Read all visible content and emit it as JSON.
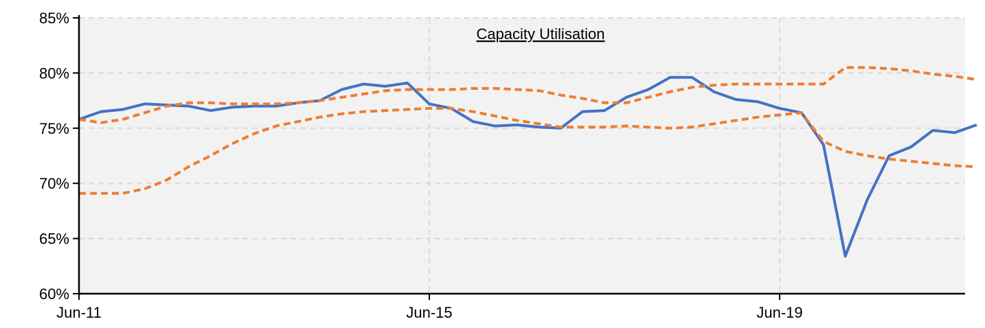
{
  "chart_data": {
    "type": "line",
    "title": "Capacity Utilisation",
    "xlabel": "",
    "ylabel": "",
    "x_tick_labels": [
      "Jun-11",
      "Jun-15",
      "Jun-19"
    ],
    "y_tick_labels": [
      "60%",
      "65%",
      "70%",
      "75%",
      "80%",
      "85%"
    ],
    "ylim": [
      60,
      85
    ],
    "grid": true,
    "legend": "none",
    "colors": {
      "background": "#f2f2f2",
      "actual": "#4472c4",
      "band": "#ed7d31",
      "grid": "#d9d9d9"
    },
    "series": [
      {
        "style": "solid",
        "color": "#4472c4",
        "points": [
          [
            "Jun-11",
            75.8
          ],
          [
            "Sep-11",
            76.5
          ],
          [
            "Dec-11",
            76.7
          ],
          [
            "Mar-12",
            77.2
          ],
          [
            "Jun-12",
            77.1
          ],
          [
            "Sep-12",
            77.0
          ],
          [
            "Dec-12",
            76.6
          ],
          [
            "Mar-13",
            76.9
          ],
          [
            "Jun-13",
            77.0
          ],
          [
            "Sep-13",
            77.0
          ],
          [
            "Dec-13",
            77.3
          ],
          [
            "Mar-14",
            77.5
          ],
          [
            "Jun-14",
            78.5
          ],
          [
            "Sep-14",
            79.0
          ],
          [
            "Dec-14",
            78.8
          ],
          [
            "Mar-15",
            79.1
          ],
          [
            "Jun-15",
            77.2
          ],
          [
            "Sep-15",
            76.8
          ],
          [
            "Dec-15",
            75.6
          ],
          [
            "Mar-16",
            75.2
          ],
          [
            "Jun-16",
            75.3
          ],
          [
            "Sep-16",
            75.1
          ],
          [
            "Dec-16",
            75.0
          ],
          [
            "Mar-17",
            76.5
          ],
          [
            "Jun-17",
            76.6
          ],
          [
            "Sep-17",
            77.8
          ],
          [
            "Dec-17",
            78.5
          ],
          [
            "Mar-18",
            79.6
          ],
          [
            "Jun-18",
            79.6
          ],
          [
            "Sep-18",
            78.3
          ],
          [
            "Dec-18",
            77.6
          ],
          [
            "Mar-19",
            77.4
          ],
          [
            "Jun-19",
            76.8
          ],
          [
            "Sep-19",
            76.4
          ],
          [
            "Dec-19",
            73.5
          ],
          [
            "Mar-20",
            63.4
          ],
          [
            "Jun-20",
            68.5
          ],
          [
            "Sep-20",
            72.5
          ],
          [
            "Dec-20",
            73.3
          ],
          [
            "Mar-21",
            74.8
          ],
          [
            "Jun-21",
            74.6
          ],
          [
            "Sep-21",
            75.3
          ]
        ]
      },
      {
        "style": "dashed",
        "color": "#ed7d31",
        "points": [
          [
            "Jun-11",
            75.8
          ],
          [
            "Sep-11",
            75.5
          ],
          [
            "Dec-11",
            75.8
          ],
          [
            "Mar-12",
            76.4
          ],
          [
            "Jun-12",
            77.0
          ],
          [
            "Sep-12",
            77.3
          ],
          [
            "Dec-12",
            77.3
          ],
          [
            "Mar-13",
            77.2
          ],
          [
            "Jun-13",
            77.2
          ],
          [
            "Sep-13",
            77.2
          ],
          [
            "Dec-13",
            77.3
          ],
          [
            "Mar-14",
            77.5
          ],
          [
            "Jun-14",
            77.8
          ],
          [
            "Sep-14",
            78.1
          ],
          [
            "Dec-14",
            78.4
          ],
          [
            "Mar-15",
            78.5
          ],
          [
            "Jun-15",
            78.5
          ],
          [
            "Sep-15",
            78.5
          ],
          [
            "Dec-15",
            78.6
          ],
          [
            "Mar-16",
            78.6
          ],
          [
            "Jun-16",
            78.5
          ],
          [
            "Sep-16",
            78.4
          ],
          [
            "Dec-16",
            78.0
          ],
          [
            "Mar-17",
            77.7
          ],
          [
            "Jun-17",
            77.3
          ],
          [
            "Sep-17",
            77.3
          ],
          [
            "Dec-17",
            77.8
          ],
          [
            "Mar-18",
            78.3
          ],
          [
            "Jun-18",
            78.7
          ],
          [
            "Sep-18",
            78.9
          ],
          [
            "Dec-18",
            79.0
          ],
          [
            "Mar-19",
            79.0
          ],
          [
            "Jun-19",
            79.0
          ],
          [
            "Sep-19",
            79.0
          ],
          [
            "Dec-19",
            79.0
          ],
          [
            "Mar-20",
            80.5
          ],
          [
            "Jun-20",
            80.5
          ],
          [
            "Sep-20",
            80.4
          ],
          [
            "Dec-20",
            80.2
          ],
          [
            "Mar-21",
            79.9
          ],
          [
            "Jun-21",
            79.7
          ],
          [
            "Sep-21",
            79.4
          ]
        ]
      },
      {
        "style": "dashed",
        "color": "#ed7d31",
        "points": [
          [
            "Jun-11",
            69.1
          ],
          [
            "Sep-11",
            69.1
          ],
          [
            "Dec-11",
            69.1
          ],
          [
            "Mar-12",
            69.5
          ],
          [
            "Jun-12",
            70.3
          ],
          [
            "Sep-12",
            71.5
          ],
          [
            "Dec-12",
            72.5
          ],
          [
            "Mar-13",
            73.6
          ],
          [
            "Jun-13",
            74.5
          ],
          [
            "Sep-13",
            75.2
          ],
          [
            "Dec-13",
            75.6
          ],
          [
            "Mar-14",
            76.0
          ],
          [
            "Jun-14",
            76.3
          ],
          [
            "Sep-14",
            76.5
          ],
          [
            "Dec-14",
            76.6
          ],
          [
            "Mar-15",
            76.7
          ],
          [
            "Jun-15",
            76.8
          ],
          [
            "Sep-15",
            76.8
          ],
          [
            "Dec-15",
            76.5
          ],
          [
            "Mar-16",
            76.1
          ],
          [
            "Jun-16",
            75.7
          ],
          [
            "Sep-16",
            75.4
          ],
          [
            "Dec-16",
            75.1
          ],
          [
            "Mar-17",
            75.1
          ],
          [
            "Jun-17",
            75.1
          ],
          [
            "Sep-17",
            75.2
          ],
          [
            "Dec-17",
            75.1
          ],
          [
            "Mar-18",
            75.0
          ],
          [
            "Jun-18",
            75.1
          ],
          [
            "Sep-18",
            75.4
          ],
          [
            "Dec-18",
            75.7
          ],
          [
            "Mar-19",
            76.0
          ],
          [
            "Jun-19",
            76.2
          ],
          [
            "Sep-19",
            76.4
          ],
          [
            "Dec-19",
            73.8
          ],
          [
            "Mar-20",
            72.9
          ],
          [
            "Jun-20",
            72.5
          ],
          [
            "Sep-20",
            72.2
          ],
          [
            "Dec-20",
            72.0
          ],
          [
            "Mar-21",
            71.8
          ],
          [
            "Jun-21",
            71.6
          ],
          [
            "Sep-21",
            71.5
          ]
        ]
      }
    ]
  }
}
